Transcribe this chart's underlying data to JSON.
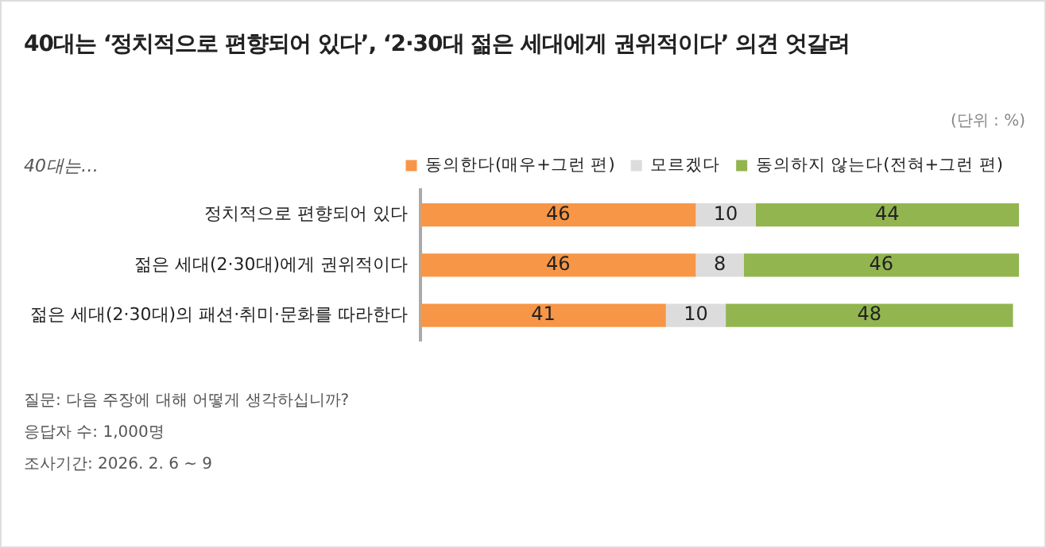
{
  "chart_data": {
    "type": "bar",
    "orientation": "horizontal",
    "stacked": true,
    "title": "40대는 ‘정치적으로 편향되어 있다’, ‘2·30대 젊은 세대에게 권위적이다’ 의견 엇갈려",
    "subtitle": "40대는…",
    "categories": [
      "정치적으로 편향되어 있다",
      "젊은 세대(2·30대)에게 권위적이다",
      "젊은 세대(2·30대)의 패션·취미·문화를 따라한다"
    ],
    "series": [
      {
        "name": "동의한다(매우+그런 편)",
        "color": "#f79646",
        "values": [
          46,
          46,
          41
        ]
      },
      {
        "name": "모르겠다",
        "color": "#dcdcdc",
        "values": [
          10,
          8,
          10
        ]
      },
      {
        "name": "동의하지 않는다(전혀+그런 편)",
        "color": "#92b550",
        "values": [
          44,
          46,
          48
        ]
      }
    ],
    "xlim": [
      0,
      100
    ],
    "tick_labels": "y",
    "legend": "top right",
    "data_labels": true,
    "annotations": [
      "(단위 : %)",
      "질문: 다음 주장에 대해 어떻게 생각하십니까?",
      "응답자 수: 1,000명",
      "조사기간: 2026. 2. 6 ~ 9"
    ]
  }
}
